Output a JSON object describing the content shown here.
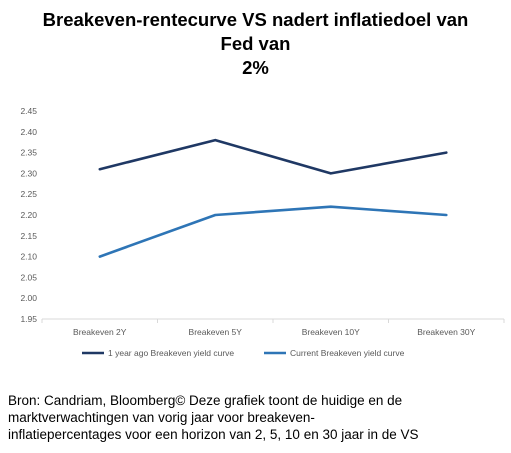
{
  "title_lines": [
    "Breakeven-rentecurve VS nadert inflatiedoel van",
    "Fed van",
    "2%"
  ],
  "caption_lines": [
    "Bron: Candriam, Bloomberg© Deze grafiek toont de huidige en de",
    "marktverwachtingen van vorig jaar voor breakeven-",
    "inflatiepercentages voor een horizon van 2, 5, 10 en 30 jaar in de VS"
  ],
  "chart_data": {
    "type": "line",
    "categories": [
      "Breakeven 2Y",
      "Breakeven 5Y",
      "Breakeven 10Y",
      "Breakeven 30Y"
    ],
    "ylim": [
      1.95,
      2.45
    ],
    "yticks": [
      "1.95",
      "2.00",
      "2.05",
      "2.10",
      "2.15",
      "2.20",
      "2.25",
      "2.30",
      "2.35",
      "2.40",
      "2.45"
    ],
    "grid": false,
    "legend_position": "bottom",
    "series": [
      {
        "name": "1 year ago Breakeven yield curve",
        "values": [
          2.31,
          2.38,
          2.3,
          2.35
        ],
        "color": "#1f3864"
      },
      {
        "name": "Current Breakeven yield curve",
        "values": [
          2.1,
          2.2,
          2.22,
          2.2
        ],
        "color": "#2e75b6"
      }
    ]
  }
}
